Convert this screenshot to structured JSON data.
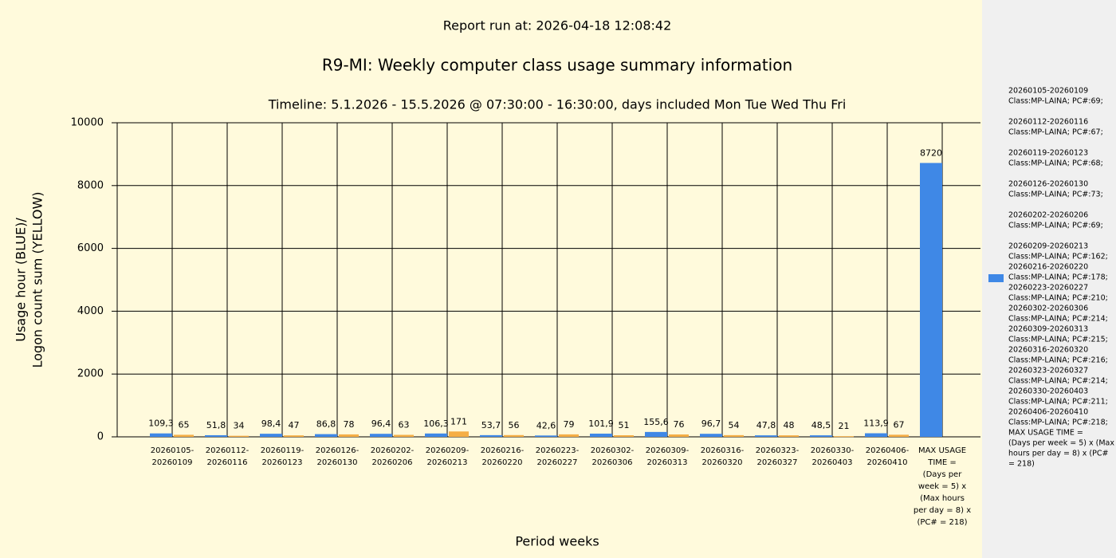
{
  "chart_data": {
    "type": "bar",
    "report_run": "Report run at: 2026-04-18 12:08:42",
    "title": "R9-MI: Weekly computer class usage summary information",
    "subtitle": "Timeline:  5.1.2026  - 15.5.2026  @  07:30:00 -  16:30:00, days included Mon Tue Wed Thu Fri",
    "ylabel": [
      "Usage hour (BLUE)/",
      "Logon count sum (YELLOW)"
    ],
    "xlabel": "Period weeks",
    "categories": [
      [
        "20260105-",
        "20260109"
      ],
      [
        "20260112-",
        "20260116"
      ],
      [
        "20260119-",
        "20260123"
      ],
      [
        "20260126-",
        "20260130"
      ],
      [
        "20260202-",
        "20260206"
      ],
      [
        "20260209-",
        "20260213"
      ],
      [
        "20260216-",
        "20260220"
      ],
      [
        "20260223-",
        "20260227"
      ],
      [
        "20260302-",
        "20260306"
      ],
      [
        "20260309-",
        "20260313"
      ],
      [
        "20260316-",
        "20260320"
      ],
      [
        "20260323-",
        "20260327"
      ],
      [
        "20260330-",
        "20260403"
      ],
      [
        "20260406-",
        "20260410"
      ],
      [
        "MAX USAGE",
        "TIME =",
        "(Days per",
        "week = 5) x",
        "(Max hours",
        "per day = 8) x",
        "(PC# = 218)"
      ]
    ],
    "series": [
      {
        "name": [
          [
            "20260105-20260109",
            "Class:MP-LAINA; PC#:69;"
          ],
          [
            "20260112-20260116",
            "Class:MP-LAINA; PC#:67;"
          ],
          [
            "20260119-20260123",
            "Class:MP-LAINA; PC#:68;"
          ],
          [
            "20260126-20260130",
            "Class:MP-LAINA; PC#:73;"
          ],
          [
            "20260202-20260206",
            "Class:MP-LAINA; PC#:69;"
          ],
          [
            "20260209-20260213",
            "Class:MP-LAINA; PC#:162;"
          ],
          [
            "20260216-20260220",
            "Class:MP-LAINA; PC#:178;"
          ],
          [
            "20260223-20260227",
            "Class:MP-LAINA; PC#:210;"
          ],
          [
            "20260302-20260306",
            "Class:MP-LAINA; PC#:214;"
          ],
          [
            "20260309-20260313",
            "Class:MP-LAINA; PC#:215;"
          ],
          [
            "20260316-20260320",
            "Class:MP-LAINA; PC#:216;"
          ],
          [
            "20260323-20260327",
            "Class:MP-LAINA; PC#:214;"
          ],
          [
            "20260330-20260403",
            "Class:MP-LAINA; PC#:211;"
          ],
          [
            "20260406-20260410",
            "Class:MP-LAINA; PC#:218;"
          ],
          [
            "MAX USAGE TIME =",
            "  (Days per week = 5) x (Max",
            "hours per day = 8) x (PC#",
            "= 218)"
          ]
        ],
        "color": "#3f88e6",
        "values": [
          109.3,
          51.8,
          98.4,
          86.8,
          96.4,
          106.3,
          53.7,
          42.6,
          101.9,
          155.6,
          96.7,
          47.8,
          48.5,
          113.9,
          8720
        ],
        "value_labels": [
          "109,3",
          "51,8",
          "98,4",
          "86,8",
          "96,4",
          "106,3",
          "53,7",
          "42,6",
          "101,9",
          "155,6",
          "96,7",
          "47,8",
          "48,5",
          "113,9",
          "8720"
        ]
      },
      {
        "color": "#f5ae45",
        "values": [
          65,
          34,
          47,
          78,
          63,
          171,
          56,
          79,
          51,
          76,
          54,
          48,
          21,
          67,
          null
        ]
      }
    ],
    "ylim": [
      0,
      10000
    ],
    "yticks": [
      0,
      2000,
      4000,
      6000,
      8000,
      10000
    ],
    "grid": true
  }
}
